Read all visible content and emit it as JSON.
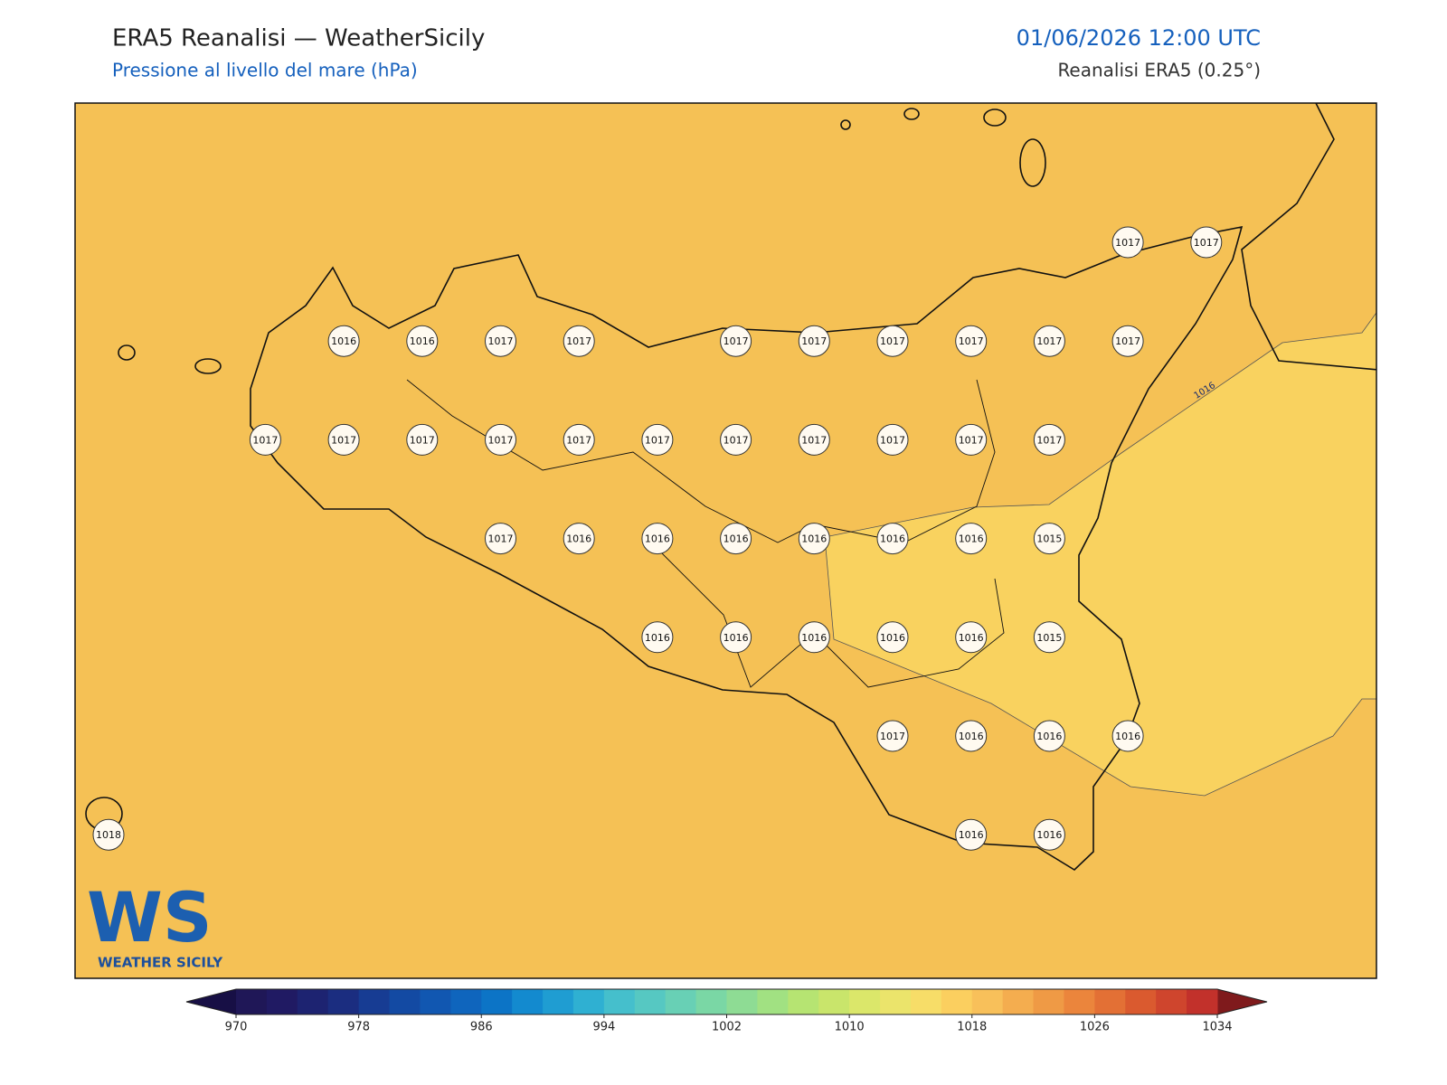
{
  "header": {
    "title": "ERA5 Reanalisi — WeatherSicily",
    "subtitle": "Pressione al livello del mare (hPa)",
    "datetime": "01/06/2026 12:00 UTC",
    "source": "Reanalisi ERA5 (0.25°)"
  },
  "map": {
    "fill_color": "#f5c155",
    "contour_fill_color": "#f9d25f",
    "contour_label": 1016,
    "pressure_grid": [
      [
        null,
        null,
        null,
        null,
        null,
        null,
        null,
        null,
        null,
        null,
        null,
        null,
        null,
        1017,
        1017
      ],
      [
        null,
        null,
        null,
        1016,
        1016,
        1017,
        1017,
        null,
        1017,
        1017,
        1017,
        1017,
        1017,
        1017,
        null
      ],
      [
        null,
        null,
        1017,
        1017,
        1017,
        1017,
        1017,
        1017,
        1017,
        1017,
        1017,
        1017,
        1017,
        null,
        null
      ],
      [
        null,
        null,
        null,
        null,
        null,
        1017,
        1016,
        1016,
        1016,
        1016,
        1016,
        1016,
        1015,
        null,
        null
      ],
      [
        null,
        null,
        null,
        null,
        null,
        null,
        null,
        1016,
        1016,
        1016,
        1016,
        1016,
        1015,
        null,
        null
      ],
      [
        null,
        null,
        null,
        null,
        null,
        null,
        null,
        null,
        null,
        null,
        1017,
        1016,
        1016,
        1016,
        null
      ],
      [
        1018,
        null,
        null,
        null,
        null,
        null,
        null,
        null,
        null,
        null,
        null,
        1016,
        1016,
        null,
        null
      ]
    ]
  },
  "logo": {
    "mark": "WS",
    "text": "WEATHER SICILY"
  },
  "colorbar": {
    "lim": [
      970,
      1034
    ],
    "ticks": [
      970,
      978,
      986,
      994,
      1002,
      1010,
      1018,
      1026,
      1034
    ],
    "extend_colors": [
      "#170f45",
      "#7f1a1c"
    ],
    "colors": [
      "#1f1757",
      "#201a63",
      "#1d2371",
      "#1b2d80",
      "#173c93",
      "#134aa3",
      "#1157b1",
      "#0f65bd",
      "#0c74c6",
      "#138acf",
      "#1f9dd2",
      "#2fb0d2",
      "#45bfcc",
      "#56c8c2",
      "#68d0b5",
      "#7ad7a5",
      "#8edc94",
      "#a1e182",
      "#b6e472",
      "#c9e56b",
      "#dbe76a",
      "#ebe46b",
      "#f7dd68",
      "#fbcf5f",
      "#f8c05a",
      "#f4ad4f",
      "#ef9a45",
      "#eb853c",
      "#e37035",
      "#da5a2f",
      "#cf452d",
      "#c2312b"
    ]
  }
}
